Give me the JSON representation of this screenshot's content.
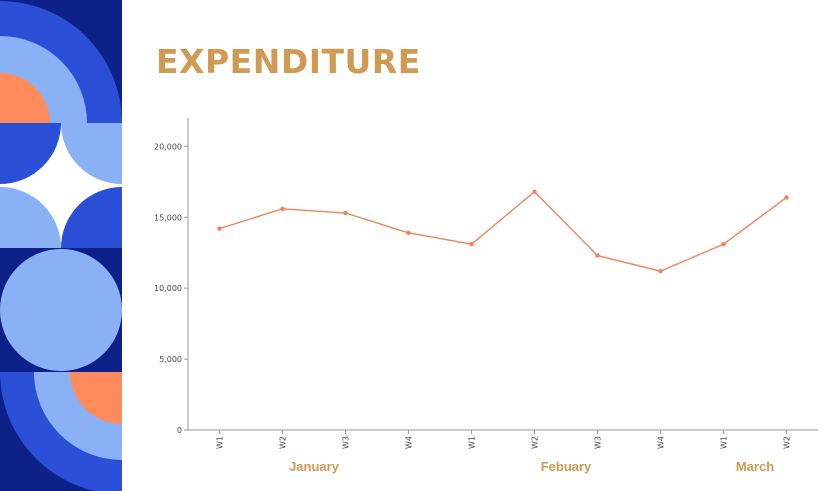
{
  "title": "EXPENDITURE",
  "colors": {
    "title": "#D19A52",
    "line": "#F0835A",
    "month_label": "#D19A52",
    "axis": "#999999",
    "deco_navy": "#0E2189",
    "deco_blue": "#2B4FD6",
    "deco_light": "#8AB0F5",
    "deco_orange": "#FF8A5C"
  },
  "chart_data": {
    "type": "line",
    "title": "",
    "xlabel": "",
    "ylabel": "",
    "categories": [
      "W1",
      "W2",
      "W3",
      "W4",
      "W1",
      "W2",
      "W3",
      "W4",
      "W1",
      "W2"
    ],
    "series": [
      {
        "values": [
          14200,
          15600,
          15300,
          13900,
          13100,
          16800,
          12300,
          11200,
          13100,
          16400
        ]
      }
    ],
    "y_ticks": [
      "0",
      "5,000",
      "10,000",
      "15,000",
      "20,000"
    ],
    "ylim": [
      0,
      22000
    ],
    "groups": [
      {
        "label": "January",
        "start": 0,
        "end": 3
      },
      {
        "label": "Febuary",
        "start": 4,
        "end": 7
      },
      {
        "label": "March",
        "start": 8,
        "end": 9
      }
    ],
    "grid": false,
    "legend": "none"
  }
}
